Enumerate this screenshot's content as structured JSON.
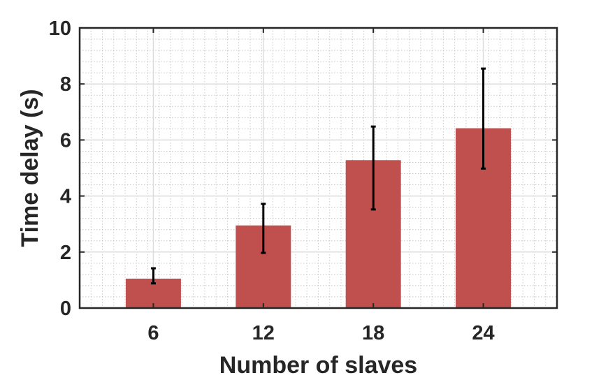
{
  "chart_data": {
    "type": "bar",
    "title": "",
    "xlabel": "Number of slaves",
    "ylabel": "Time delay (s)",
    "categories": [
      "6",
      "12",
      "18",
      "24"
    ],
    "values": [
      1.05,
      2.95,
      5.28,
      6.42
    ],
    "error_low": [
      0.88,
      1.97,
      3.52,
      4.98
    ],
    "error_high": [
      1.42,
      3.72,
      6.48,
      8.55
    ],
    "ylim": [
      0,
      10
    ],
    "yticks": [
      0,
      2,
      4,
      6,
      8,
      10
    ],
    "grid": "on (major and minor)",
    "legend": "none",
    "bar_color": "#c0504d",
    "errorbar_color": "#000000"
  }
}
